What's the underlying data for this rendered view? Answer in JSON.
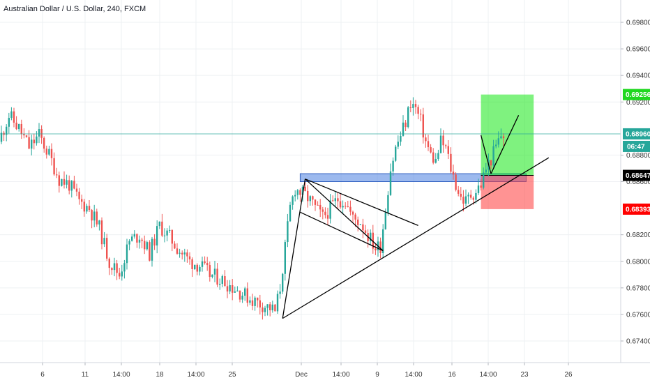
{
  "chart_data": {
    "type": "candlestick",
    "title": "Australian Dollar / U.S. Dollar, 240, FXCM",
    "symbol": "AUDUSD",
    "timeframe": "240",
    "source": "FXCM",
    "x_ticks": [
      "6",
      "11",
      "14:00",
      "18",
      "14:00",
      "25",
      "Dec",
      "14:00",
      "9",
      "14:00",
      "16",
      "14:00",
      "23",
      "26"
    ],
    "y_ticks": [
      "0.69800",
      "0.69600",
      "0.69400",
      "0.69200",
      "0.68800",
      "0.68600",
      "0.68200",
      "0.68000",
      "0.67800",
      "0.67600",
      "0.67400"
    ],
    "ylim": [
      0.6725,
      0.6998
    ],
    "grid": true,
    "price_markers": [
      {
        "label": "0.69256",
        "value": 0.69256,
        "color": "#1fd81f",
        "text_color": "#ffffff",
        "role": "take-profit"
      },
      {
        "label": "0.68960",
        "value": 0.6896,
        "color": "#26a69a",
        "text_color": "#ffffff",
        "role": "current-price"
      },
      {
        "label": "06:47",
        "value": null,
        "color": "#26a69a",
        "text_color": "#ffffff",
        "role": "bar-countdown"
      },
      {
        "label": "0.68647",
        "value": 0.68647,
        "color": "#000000",
        "text_color": "#ffffff",
        "role": "entry"
      },
      {
        "label": "0.68393",
        "value": 0.68393,
        "color": "#ff0000",
        "text_color": "#ffffff",
        "role": "stop-loss"
      }
    ],
    "colors": {
      "up": "#26a69a",
      "down": "#ef5350",
      "grid": "#eef0f3",
      "current_line": "#26a69a"
    },
    "trend": [
      [
        0,
        0.689
      ],
      [
        4,
        0.691
      ],
      [
        8,
        0.69
      ],
      [
        12,
        0.6886
      ],
      [
        16,
        0.6895
      ],
      [
        20,
        0.688
      ],
      [
        24,
        0.6862
      ],
      [
        28,
        0.6858
      ],
      [
        32,
        0.6845
      ],
      [
        36,
        0.684
      ],
      [
        40,
        0.6825
      ],
      [
        44,
        0.68
      ],
      [
        48,
        0.679
      ],
      [
        52,
        0.6815
      ],
      [
        56,
        0.682
      ],
      [
        60,
        0.6806
      ],
      [
        64,
        0.6827
      ],
      [
        68,
        0.6818
      ],
      [
        72,
        0.6808
      ],
      [
        76,
        0.68
      ],
      [
        80,
        0.6797
      ],
      [
        84,
        0.679
      ],
      [
        88,
        0.6787
      ],
      [
        92,
        0.6782
      ],
      [
        96,
        0.6777
      ],
      [
        100,
        0.6772
      ],
      [
        104,
        0.6768
      ],
      [
        108,
        0.6765
      ],
      [
        110,
        0.6762
      ],
      [
        112,
        0.678
      ],
      [
        114,
        0.681
      ],
      [
        116,
        0.684
      ],
      [
        118,
        0.6855
      ],
      [
        120,
        0.6852
      ],
      [
        123,
        0.6848
      ],
      [
        126,
        0.684
      ],
      [
        129,
        0.6833
      ],
      [
        132,
        0.684
      ],
      [
        135,
        0.6847
      ],
      [
        138,
        0.6845
      ],
      [
        141,
        0.6832
      ],
      [
        144,
        0.683
      ],
      [
        147,
        0.682
      ],
      [
        150,
        0.681
      ],
      [
        152,
        0.6812
      ],
      [
        154,
        0.684
      ],
      [
        156,
        0.687
      ],
      [
        158,
        0.6885
      ],
      [
        160,
        0.6895
      ],
      [
        162,
        0.6905
      ],
      [
        164,
        0.692
      ],
      [
        166,
        0.6915
      ],
      [
        168,
        0.6905
      ],
      [
        170,
        0.689
      ],
      [
        172,
        0.688
      ],
      [
        174,
        0.6875
      ],
      [
        176,
        0.689
      ],
      [
        178,
        0.6885
      ],
      [
        180,
        0.687
      ],
      [
        182,
        0.6858
      ],
      [
        184,
        0.6848
      ],
      [
        186,
        0.6845
      ],
      [
        188,
        0.685
      ],
      [
        190,
        0.6853
      ],
      [
        192,
        0.6858
      ],
      [
        194,
        0.687
      ],
      [
        196,
        0.6877
      ],
      [
        198,
        0.6886
      ],
      [
        200,
        0.6895
      ]
    ],
    "drawings": {
      "support_zone": {
        "x_from_bar": 119,
        "x_to_bar": 209,
        "price_top": 0.6866,
        "price_bottom": 0.686,
        "color": "#4a80e0"
      },
      "long_position": {
        "x_from_bar": 191,
        "x_to_bar": 212,
        "entry": 0.68647,
        "target": 0.69256,
        "stop": 0.68393
      },
      "lines": [
        {
          "from": [
            112,
            0.6757
          ],
          "to": [
            218,
            0.6878
          ]
        },
        {
          "from": [
            112,
            0.6757
          ],
          "to": [
            121,
            0.6862
          ]
        },
        {
          "from": [
            121,
            0.6862
          ],
          "to": [
            166,
            0.6827
          ]
        },
        {
          "from": [
            119,
            0.6837
          ],
          "to": [
            152,
            0.6808
          ]
        },
        {
          "from": [
            121,
            0.6862
          ],
          "to": [
            152,
            0.6808
          ]
        },
        {
          "from": [
            191,
            0.6895
          ],
          "to": [
            195,
            0.6866
          ]
        },
        {
          "from": [
            195,
            0.6866
          ],
          "to": [
            206,
            0.691
          ]
        }
      ]
    }
  }
}
